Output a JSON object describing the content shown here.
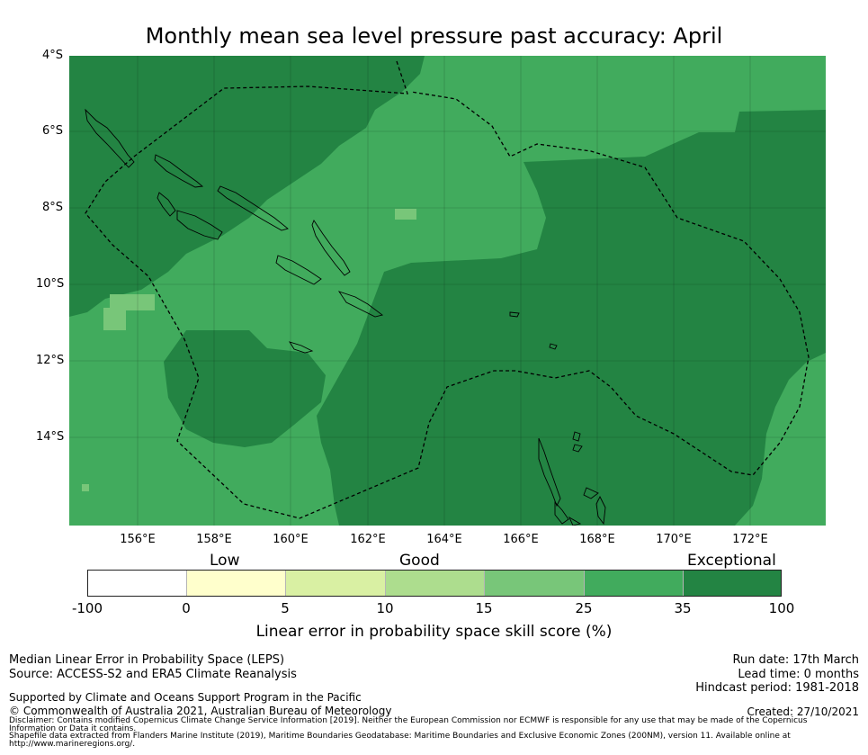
{
  "title": "Monthly mean sea level pressure past accuracy: April",
  "colors": {
    "exceptional": "#238443",
    "high": "#41ab5d",
    "mid": "#78c679",
    "coast": "#000000",
    "eez": "#000000"
  },
  "map": {
    "lat_labels": [
      "4°S",
      "6°S",
      "8°S",
      "10°S",
      "12°S",
      "14°S"
    ],
    "lon_labels": [
      "156°E",
      "158°E",
      "160°E",
      "162°E",
      "164°E",
      "166°E",
      "168°E",
      "170°E",
      "172°E"
    ],
    "lon_range": [
      154.2,
      174.0
    ],
    "lat_range": [
      -4.0,
      -16.3
    ]
  },
  "colorbar": {
    "categories": [
      "Low",
      "Good",
      "Exceptional"
    ],
    "ticks": [
      "-100",
      "0",
      "5",
      "10",
      "15",
      "25",
      "35",
      "100"
    ],
    "segment_colors": [
      "#ffffff",
      "#ffffcc",
      "#d9f0a3",
      "#addd8e",
      "#78c679",
      "#41ab5d",
      "#238443"
    ],
    "label": "Linear error in probability space skill score (%)"
  },
  "info": {
    "method": "Median Linear Error in Probability Space (LEPS)",
    "source": "Source: ACCESS-S2 and ERA5 Climate Reanalysis",
    "run_date": "Run date: 17th March",
    "lead_time": "Lead time: 0 months",
    "hindcast": "Hindcast period: 1981-2018",
    "support": "Supported by Climate and Oceans Support Program in the Pacific",
    "copyright": "© Commonwealth of Australia 2021, Australian Bureau of Meteorology",
    "created": "Created: 27/10/2021",
    "disclaimer": "Disclaimer: Contains modified Copernicus Climate Change Service Information [2019]. Neither the European Commission nor ECMWF is responsible for any use that may be made of the Copernicus Information or Data it contains.",
    "shapefile": "Shapefile data extracted from Flanders Marine Institute (2019), Maritime Boundaries Geodatabase: Maritime Boundaries and Exclusive Economic Zones (200NM), version 11. Available online at http://www.marineregions.org/."
  }
}
